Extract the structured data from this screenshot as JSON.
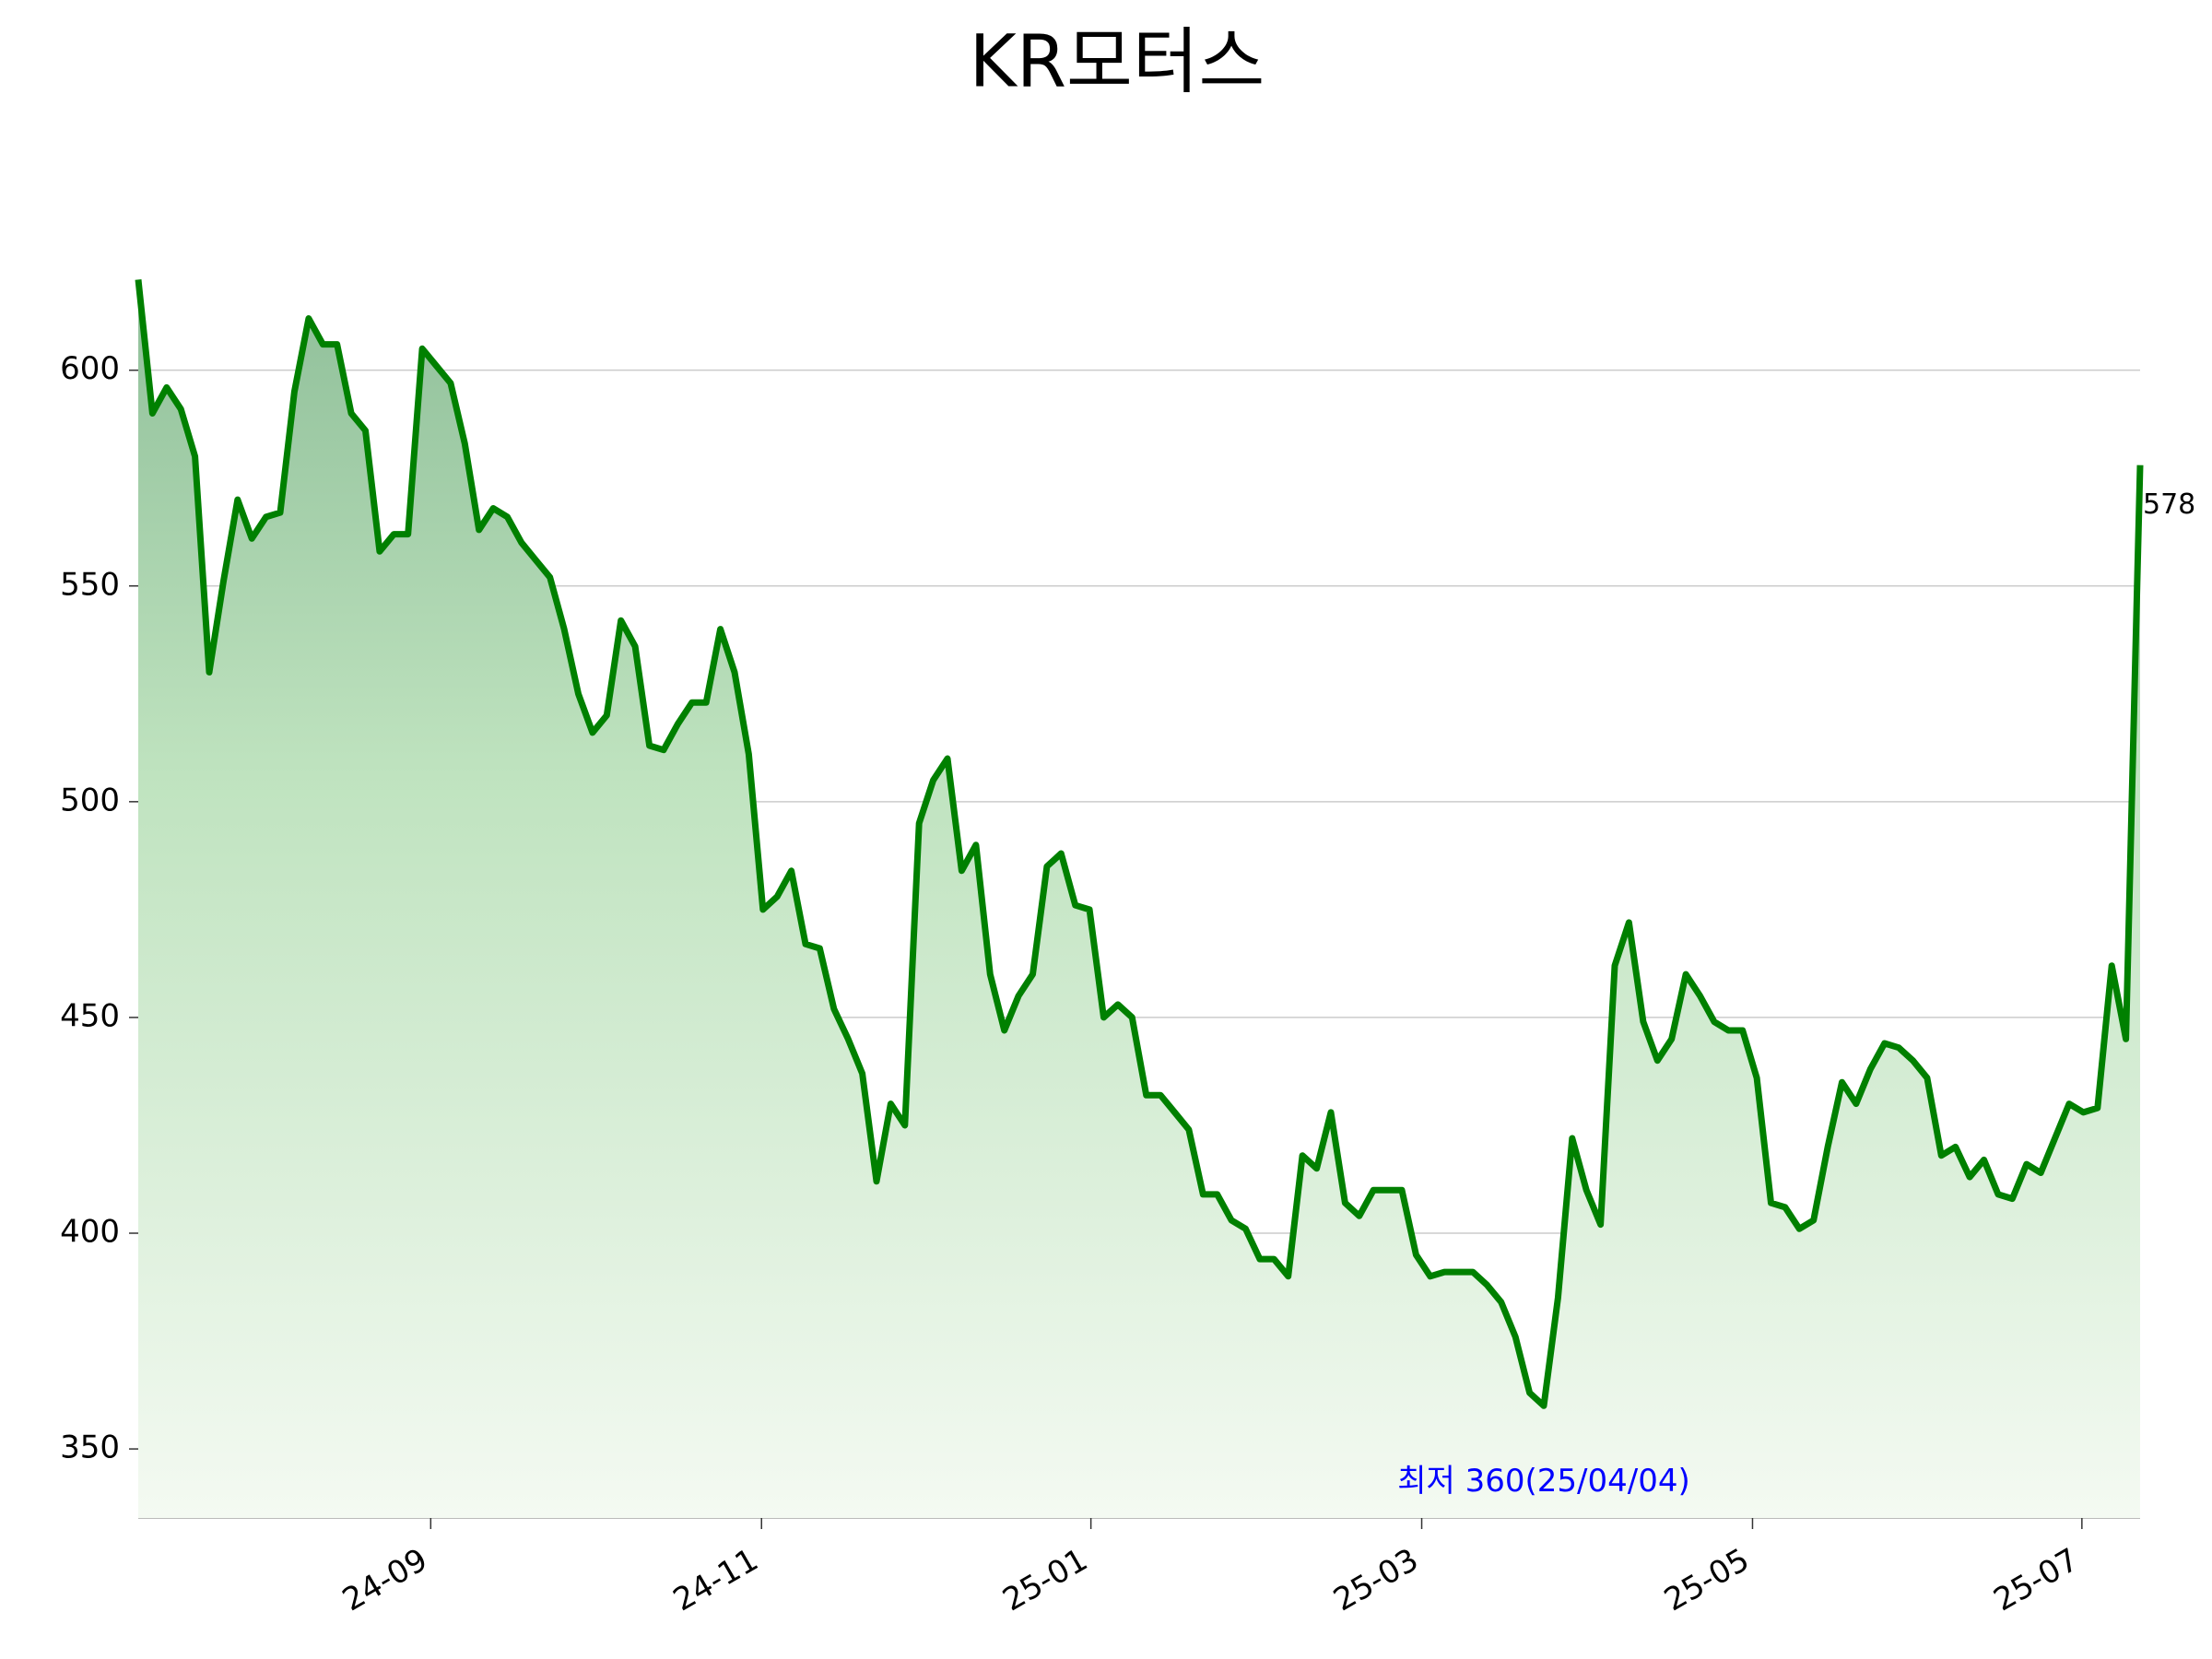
{
  "chart_data": {
    "type": "line",
    "title": "KR모터스",
    "color": "#008000",
    "values": [
      621,
      590,
      596,
      591,
      580,
      530,
      551,
      570,
      561,
      566,
      567,
      595,
      612,
      606,
      606,
      590,
      586,
      558,
      562,
      562,
      605,
      601,
      597,
      583,
      563,
      568,
      566,
      560,
      556,
      552,
      540,
      525,
      516,
      520,
      542,
      536,
      513,
      512,
      518,
      523,
      523,
      540,
      530,
      511,
      475,
      478,
      484,
      467,
      466,
      452,
      445,
      437,
      412,
      430,
      425,
      495,
      505,
      510,
      484,
      490,
      460,
      447,
      455,
      460,
      485,
      488,
      476,
      475,
      450,
      453,
      450,
      432,
      432,
      428,
      424,
      409,
      409,
      403,
      401,
      394,
      394,
      390,
      418,
      415,
      428,
      407,
      404,
      410,
      410,
      410,
      395,
      390,
      391,
      391,
      391,
      388,
      384,
      376,
      363,
      360,
      385,
      422,
      410,
      402,
      462,
      472,
      449,
      440,
      445,
      460,
      455,
      449,
      447,
      447,
      436,
      407,
      406,
      401,
      403,
      420,
      435,
      430,
      438,
      444,
      443,
      440,
      436,
      418,
      420,
      413,
      417,
      409,
      408,
      416,
      414,
      422,
      430,
      428,
      429,
      462,
      445,
      578
    ],
    "xlim": [
      0,
      141
    ],
    "xticks": [
      {
        "value": 20.6,
        "label": "24-09"
      },
      {
        "value": 43.9,
        "label": "24-11"
      },
      {
        "value": 67.1,
        "label": "25-01"
      },
      {
        "value": 90.4,
        "label": "25-03"
      },
      {
        "value": 113.7,
        "label": "25-05"
      },
      {
        "value": 136.9,
        "label": "25-07"
      }
    ],
    "ylim": [
      334,
      623
    ],
    "yticks": [
      350,
      400,
      450,
      500,
      550,
      600
    ],
    "grid": true,
    "annotation": "최저 360(25/04/04)",
    "annotation_color": "#0000ff"
  }
}
